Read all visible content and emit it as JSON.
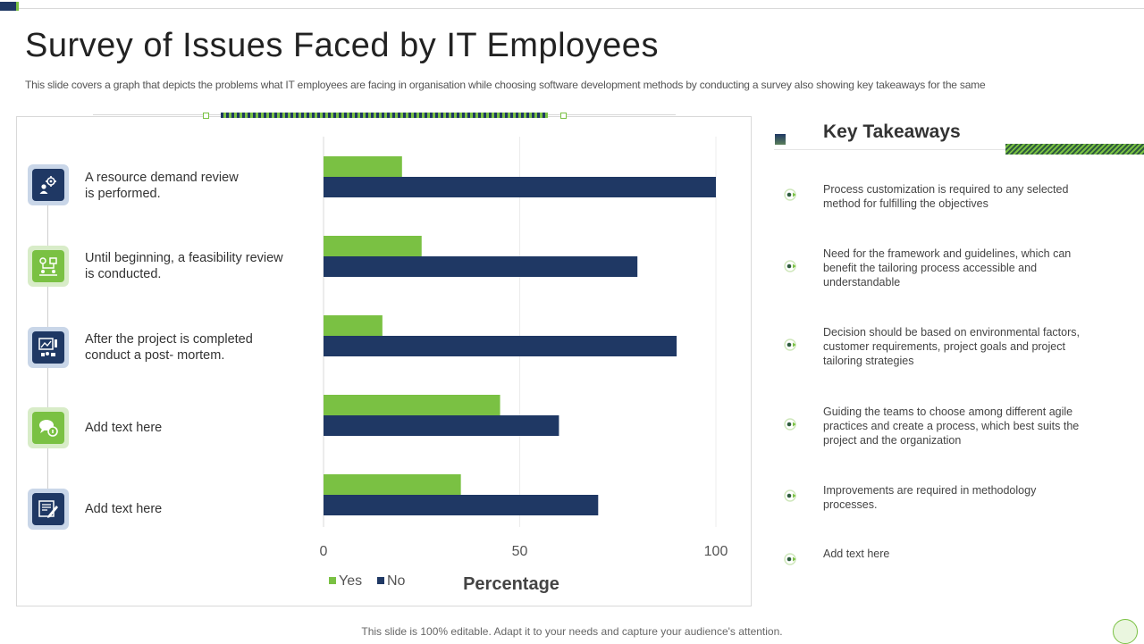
{
  "title": "Survey of Issues Faced by IT Employees",
  "subtitle": "This slide covers a graph that depicts the problems what IT employees are facing in organisation while choosing software development methods by conducting a survey  also showing key takeaways for the same",
  "items": [
    {
      "label": "A resource demand review\nis performed.",
      "icon": "gear-user-icon"
    },
    {
      "label": "Until beginning, a feasibility review\nis conducted.",
      "icon": "flowchart-icon"
    },
    {
      "label": "After the project is completed\nconduct a post- mortem.",
      "icon": "presentation-icon"
    },
    {
      "label": "Add text here",
      "icon": "chat-icon"
    },
    {
      "label": "Add text here",
      "icon": "document-icon"
    }
  ],
  "chart_data": {
    "type": "bar",
    "orientation": "horizontal",
    "categories": [
      "A resource demand review is performed.",
      "Until beginning, a feasibility review is conducted.",
      "After the project is completed conduct a post- mortem.",
      "Add text here",
      "Add text here"
    ],
    "series": [
      {
        "name": "Yes",
        "color": "#7ac143",
        "values": [
          20,
          25,
          15,
          45,
          35
        ]
      },
      {
        "name": "No",
        "color": "#1f3864",
        "values": [
          100,
          80,
          90,
          60,
          70
        ]
      }
    ],
    "xlabel": "Percentage",
    "xlim": [
      0,
      100
    ],
    "xticks": [
      0,
      50,
      100
    ],
    "legend": "bottom-left"
  },
  "takeaways": {
    "title": "Key Takeaways",
    "items": [
      "Process customization is required to any selected method for fulfilling the objectives",
      "Need for the framework  and guidelines, which can benefit the tailoring process accessible and understandable",
      "Decision should be based on environmental factors, customer requirements,  project goals and project tailoring strategies",
      "Guiding the teams to choose among different agile practices and create a process, which best suits the project and the organization",
      "Improvements  are required in methodology processes.",
      "Add text here"
    ]
  },
  "footer": "This slide is 100% editable. Adapt it to your needs and capture your audience's attention."
}
